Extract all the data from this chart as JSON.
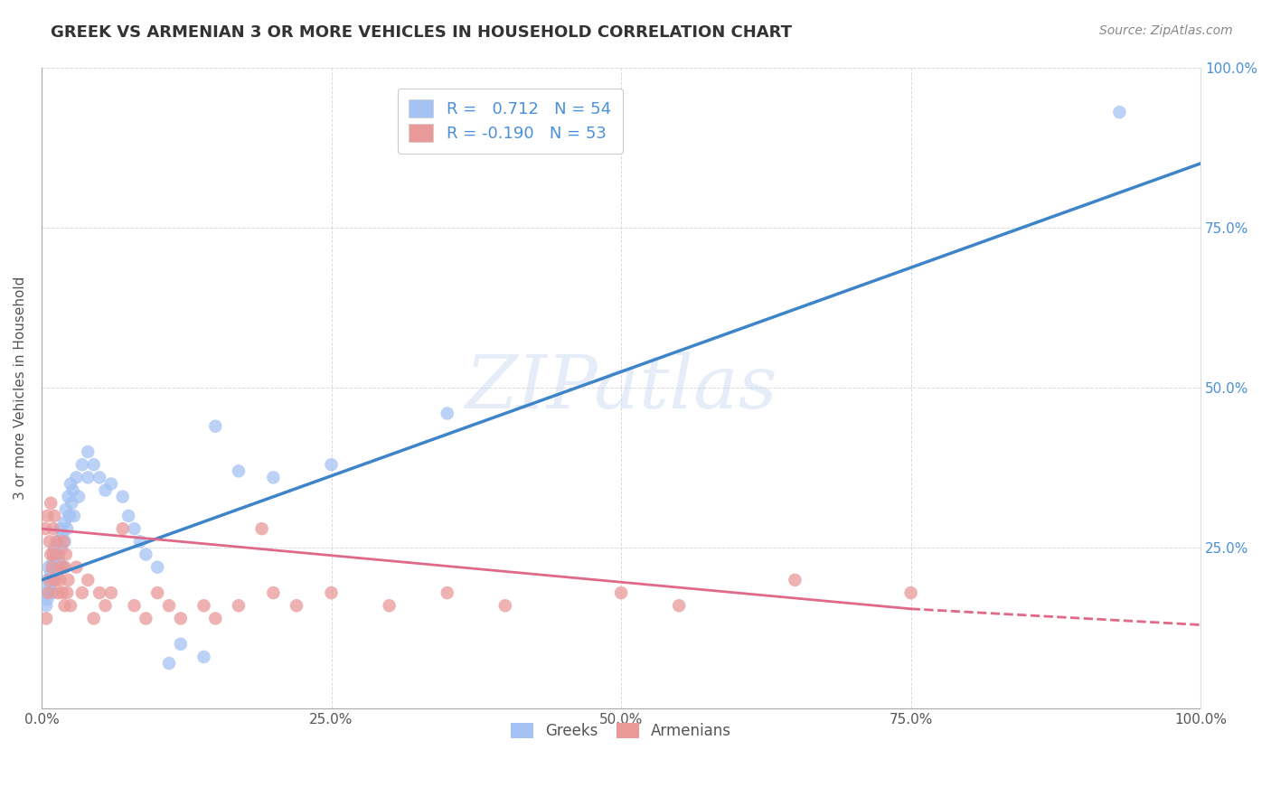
{
  "title": "GREEK VS ARMENIAN 3 OR MORE VEHICLES IN HOUSEHOLD CORRELATION CHART",
  "source": "Source: ZipAtlas.com",
  "ylabel": "3 or more Vehicles in Household",
  "watermark": "ZIPatlas",
  "legend_labels": [
    "Greeks",
    "Armenians"
  ],
  "greek_R": "0.712",
  "greek_N": "54",
  "armenian_R": "-0.190",
  "armenian_N": "53",
  "greek_color": "#a4c2f4",
  "armenian_color": "#ea9999",
  "greek_line_color": "#3d85c8",
  "armenian_line_color": "#e06888",
  "greek_scatter": [
    [
      0.3,
      18.0
    ],
    [
      0.4,
      16.0
    ],
    [
      0.5,
      20.0
    ],
    [
      0.5,
      17.0
    ],
    [
      0.6,
      22.0
    ],
    [
      0.7,
      19.0
    ],
    [
      0.8,
      21.0
    ],
    [
      0.9,
      18.0
    ],
    [
      1.0,
      23.0
    ],
    [
      1.0,
      20.0
    ],
    [
      1.1,
      25.0
    ],
    [
      1.2,
      22.0
    ],
    [
      1.3,
      24.0
    ],
    [
      1.4,
      21.0
    ],
    [
      1.5,
      26.0
    ],
    [
      1.5,
      23.0
    ],
    [
      1.6,
      28.0
    ],
    [
      1.7,
      25.0
    ],
    [
      1.8,
      27.0
    ],
    [
      1.9,
      22.0
    ],
    [
      2.0,
      29.0
    ],
    [
      2.0,
      26.0
    ],
    [
      2.1,
      31.0
    ],
    [
      2.2,
      28.0
    ],
    [
      2.3,
      33.0
    ],
    [
      2.4,
      30.0
    ],
    [
      2.5,
      35.0
    ],
    [
      2.6,
      32.0
    ],
    [
      2.7,
      34.0
    ],
    [
      2.8,
      30.0
    ],
    [
      3.0,
      36.0
    ],
    [
      3.2,
      33.0
    ],
    [
      3.5,
      38.0
    ],
    [
      4.0,
      40.0
    ],
    [
      4.0,
      36.0
    ],
    [
      4.5,
      38.0
    ],
    [
      5.0,
      36.0
    ],
    [
      5.5,
      34.0
    ],
    [
      6.0,
      35.0
    ],
    [
      7.0,
      33.0
    ],
    [
      7.5,
      30.0
    ],
    [
      8.0,
      28.0
    ],
    [
      8.5,
      26.0
    ],
    [
      9.0,
      24.0
    ],
    [
      10.0,
      22.0
    ],
    [
      11.0,
      7.0
    ],
    [
      12.0,
      10.0
    ],
    [
      14.0,
      8.0
    ],
    [
      15.0,
      44.0
    ],
    [
      17.0,
      37.0
    ],
    [
      20.0,
      36.0
    ],
    [
      25.0,
      38.0
    ],
    [
      35.0,
      46.0
    ],
    [
      93.0,
      93.0
    ]
  ],
  "armenian_scatter": [
    [
      0.3,
      28.0
    ],
    [
      0.4,
      14.0
    ],
    [
      0.5,
      30.0
    ],
    [
      0.6,
      18.0
    ],
    [
      0.7,
      26.0
    ],
    [
      0.7,
      20.0
    ],
    [
      0.8,
      32.0
    ],
    [
      0.8,
      24.0
    ],
    [
      0.9,
      22.0
    ],
    [
      1.0,
      28.0
    ],
    [
      1.0,
      24.0
    ],
    [
      1.1,
      30.0
    ],
    [
      1.2,
      20.0
    ],
    [
      1.3,
      26.0
    ],
    [
      1.4,
      18.0
    ],
    [
      1.5,
      24.0
    ],
    [
      1.6,
      20.0
    ],
    [
      1.7,
      22.0
    ],
    [
      1.8,
      18.0
    ],
    [
      1.9,
      26.0
    ],
    [
      2.0,
      22.0
    ],
    [
      2.0,
      16.0
    ],
    [
      2.1,
      24.0
    ],
    [
      2.2,
      18.0
    ],
    [
      2.3,
      20.0
    ],
    [
      2.5,
      16.0
    ],
    [
      3.0,
      22.0
    ],
    [
      3.5,
      18.0
    ],
    [
      4.0,
      20.0
    ],
    [
      4.5,
      14.0
    ],
    [
      5.0,
      18.0
    ],
    [
      5.5,
      16.0
    ],
    [
      6.0,
      18.0
    ],
    [
      7.0,
      28.0
    ],
    [
      8.0,
      16.0
    ],
    [
      9.0,
      14.0
    ],
    [
      10.0,
      18.0
    ],
    [
      11.0,
      16.0
    ],
    [
      12.0,
      14.0
    ],
    [
      14.0,
      16.0
    ],
    [
      15.0,
      14.0
    ],
    [
      17.0,
      16.0
    ],
    [
      19.0,
      28.0
    ],
    [
      20.0,
      18.0
    ],
    [
      22.0,
      16.0
    ],
    [
      25.0,
      18.0
    ],
    [
      30.0,
      16.0
    ],
    [
      35.0,
      18.0
    ],
    [
      40.0,
      16.0
    ],
    [
      50.0,
      18.0
    ],
    [
      55.0,
      16.0
    ],
    [
      65.0,
      20.0
    ],
    [
      75.0,
      18.0
    ]
  ],
  "xlim": [
    0,
    100
  ],
  "ylim": [
    0,
    100
  ],
  "greek_line": [
    0,
    100,
    20.0,
    85.0
  ],
  "armenian_line_solid": [
    0,
    75,
    28.0,
    15.5
  ],
  "armenian_line_dash": [
    75,
    100,
    15.5,
    13.0
  ],
  "background_color": "#ffffff",
  "grid_color": "#cccccc",
  "right_tick_color": "#4a90d9"
}
